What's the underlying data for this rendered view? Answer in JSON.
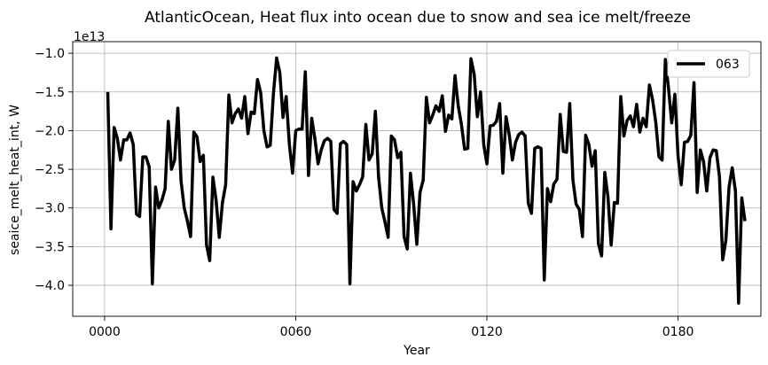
{
  "chart_data": {
    "type": "line",
    "title": "AtlanticOcean, Heat flux into ocean due to snow and sea ice melt/freeze",
    "xlabel": "Year",
    "ylabel": "seaice_melt_heat_int, W",
    "y_offset_label": "1e13",
    "xlim": [
      -10,
      206
    ],
    "ylim": [
      -4.4,
      -0.85
    ],
    "x_ticks": [
      0,
      60,
      120,
      180
    ],
    "x_tick_labels": [
      "0000",
      "0060",
      "0120",
      "0180"
    ],
    "y_ticks": [
      -4.0,
      -3.5,
      -3.0,
      -2.5,
      -2.0,
      -1.5,
      -1.0
    ],
    "y_tick_labels": [
      "−4.0",
      "−3.5",
      "−3.0",
      "−2.5",
      "−2.0",
      "−1.5",
      "−1.0"
    ],
    "grid": true,
    "legend_position": "top-right",
    "series": [
      {
        "name": "063",
        "color": "#000000",
        "x_start": 1,
        "x_step": 1,
        "values": [
          -1.5,
          -3.27,
          -1.96,
          -2.1,
          -2.38,
          -2.12,
          -2.12,
          -2.03,
          -2.18,
          -3.08,
          -3.11,
          -2.34,
          -2.34,
          -2.47,
          -3.98,
          -2.73,
          -3.0,
          -2.9,
          -2.75,
          -1.88,
          -2.5,
          -2.38,
          -1.71,
          -2.65,
          -3.0,
          -3.17,
          -3.37,
          -2.02,
          -2.08,
          -2.4,
          -2.32,
          -3.48,
          -3.68,
          -2.6,
          -2.9,
          -3.38,
          -2.93,
          -2.7,
          -1.54,
          -1.9,
          -1.78,
          -1.72,
          -1.84,
          -1.56,
          -2.04,
          -1.76,
          -1.78,
          -1.34,
          -1.51,
          -2.0,
          -2.21,
          -2.19,
          -1.52,
          -1.06,
          -1.25,
          -1.83,
          -1.56,
          -2.18,
          -2.55,
          -2.0,
          -1.98,
          -1.98,
          -1.24,
          -2.58,
          -1.84,
          -2.1,
          -2.43,
          -2.25,
          -2.13,
          -2.1,
          -2.14,
          -3.02,
          -3.07,
          -2.17,
          -2.14,
          -2.18,
          -3.98,
          -2.66,
          -2.78,
          -2.7,
          -2.6,
          -1.92,
          -2.38,
          -2.3,
          -1.75,
          -2.6,
          -3.0,
          -3.18,
          -3.38,
          -2.07,
          -2.12,
          -2.35,
          -2.28,
          -3.37,
          -3.53,
          -2.55,
          -2.95,
          -3.47,
          -2.8,
          -2.64,
          -1.57,
          -1.9,
          -1.8,
          -1.68,
          -1.75,
          -1.55,
          -2.01,
          -1.8,
          -1.85,
          -1.29,
          -1.68,
          -1.92,
          -2.24,
          -2.23,
          -1.07,
          -1.27,
          -1.82,
          -1.5,
          -2.18,
          -2.43,
          -1.94,
          -1.93,
          -1.88,
          -1.65,
          -2.55,
          -1.82,
          -2.05,
          -2.38,
          -2.15,
          -2.05,
          -2.02,
          -2.07,
          -2.94,
          -3.07,
          -2.23,
          -2.21,
          -2.23,
          -3.93,
          -2.75,
          -2.92,
          -2.69,
          -2.63,
          -1.79,
          -2.27,
          -2.28,
          -1.65,
          -2.64,
          -2.95,
          -3.02,
          -3.37,
          -2.06,
          -2.18,
          -2.46,
          -2.26,
          -3.46,
          -3.62,
          -2.54,
          -2.86,
          -3.48,
          -2.93,
          -2.94,
          -1.56,
          -2.07,
          -1.87,
          -1.81,
          -1.95,
          -1.66,
          -2.02,
          -1.84,
          -1.95,
          -1.41,
          -1.6,
          -1.89,
          -2.34,
          -2.38,
          -1.08,
          -1.45,
          -1.9,
          -1.53,
          -2.33,
          -2.7,
          -2.15,
          -2.14,
          -2.06,
          -1.38,
          -2.8,
          -2.25,
          -2.4,
          -2.78,
          -2.35,
          -2.25,
          -2.26,
          -2.6,
          -3.67,
          -3.42,
          -2.73,
          -2.48,
          -2.78,
          -4.23,
          -2.87,
          -3.17
        ]
      }
    ]
  }
}
